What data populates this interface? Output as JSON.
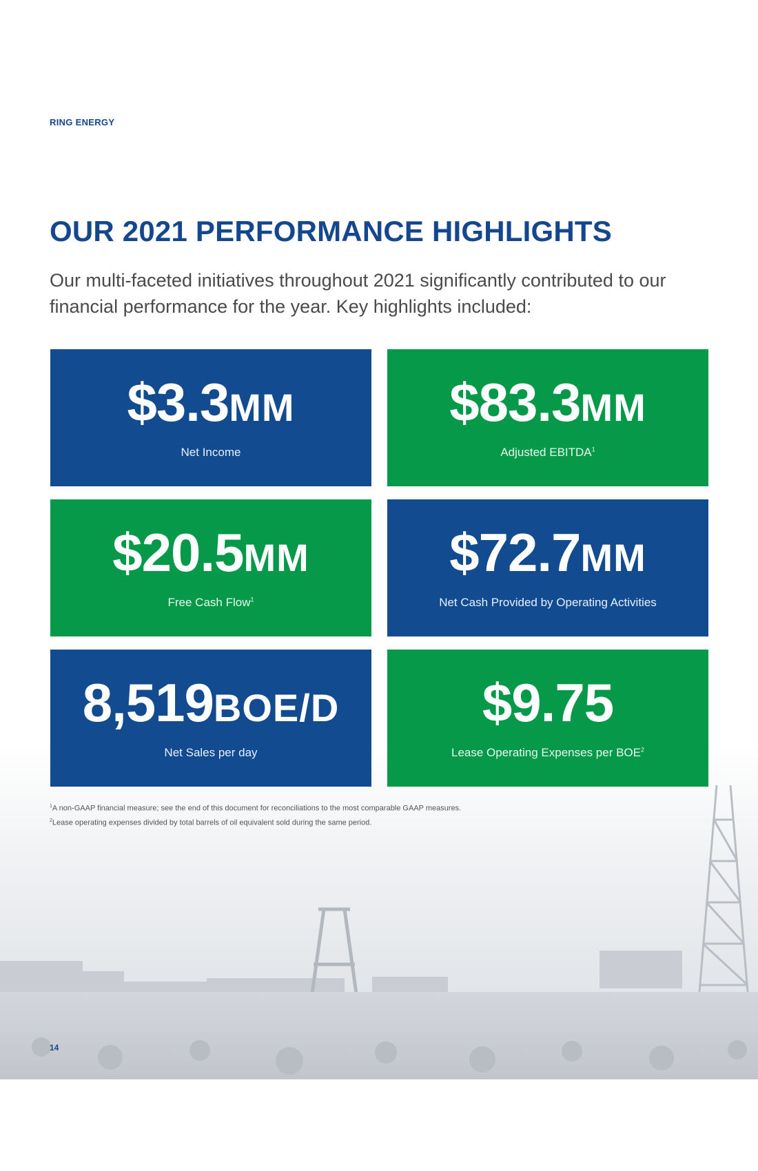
{
  "header": {
    "company": "RING ENERGY"
  },
  "title": "OUR 2021 PERFORMANCE HIGHLIGHTS",
  "intro": "Our multi-faceted initiatives throughout 2021 significantly contributed to our financial performance for the year. Key highlights included:",
  "colors": {
    "brand_blue": "#124b90",
    "brand_green": "#06994a",
    "title_blue": "#14478d"
  },
  "highlights": [
    {
      "number": "$3.3",
      "unit": "MM",
      "caption": "Net Income",
      "sup": "",
      "color": "blue"
    },
    {
      "number": "$83.3",
      "unit": "MM",
      "caption": "Adjusted EBITDA",
      "sup": "1",
      "color": "green"
    },
    {
      "number": "$20.5",
      "unit": "MM",
      "caption": "Free Cash Flow",
      "sup": "1",
      "color": "green"
    },
    {
      "number": "$72.7",
      "unit": "MM",
      "caption": "Net Cash Provided by Operating Activities",
      "sup": "",
      "color": "blue"
    },
    {
      "number": "8,519",
      "unit": "BOE/D",
      "caption": "Net Sales per day",
      "sup": "",
      "color": "blue"
    },
    {
      "number": "$9.75",
      "unit": "",
      "caption": "Lease Operating Expenses per BOE",
      "sup": "2",
      "color": "green"
    }
  ],
  "footnotes": [
    {
      "mark": "1",
      "text": "A non-GAAP financial measure; see the end of this document for reconciliations to the most comparable GAAP measures."
    },
    {
      "mark": "2",
      "text": "Lease operating expenses divided by total barrels of oil equivalent sold during the same period."
    }
  ],
  "page_number": "14"
}
